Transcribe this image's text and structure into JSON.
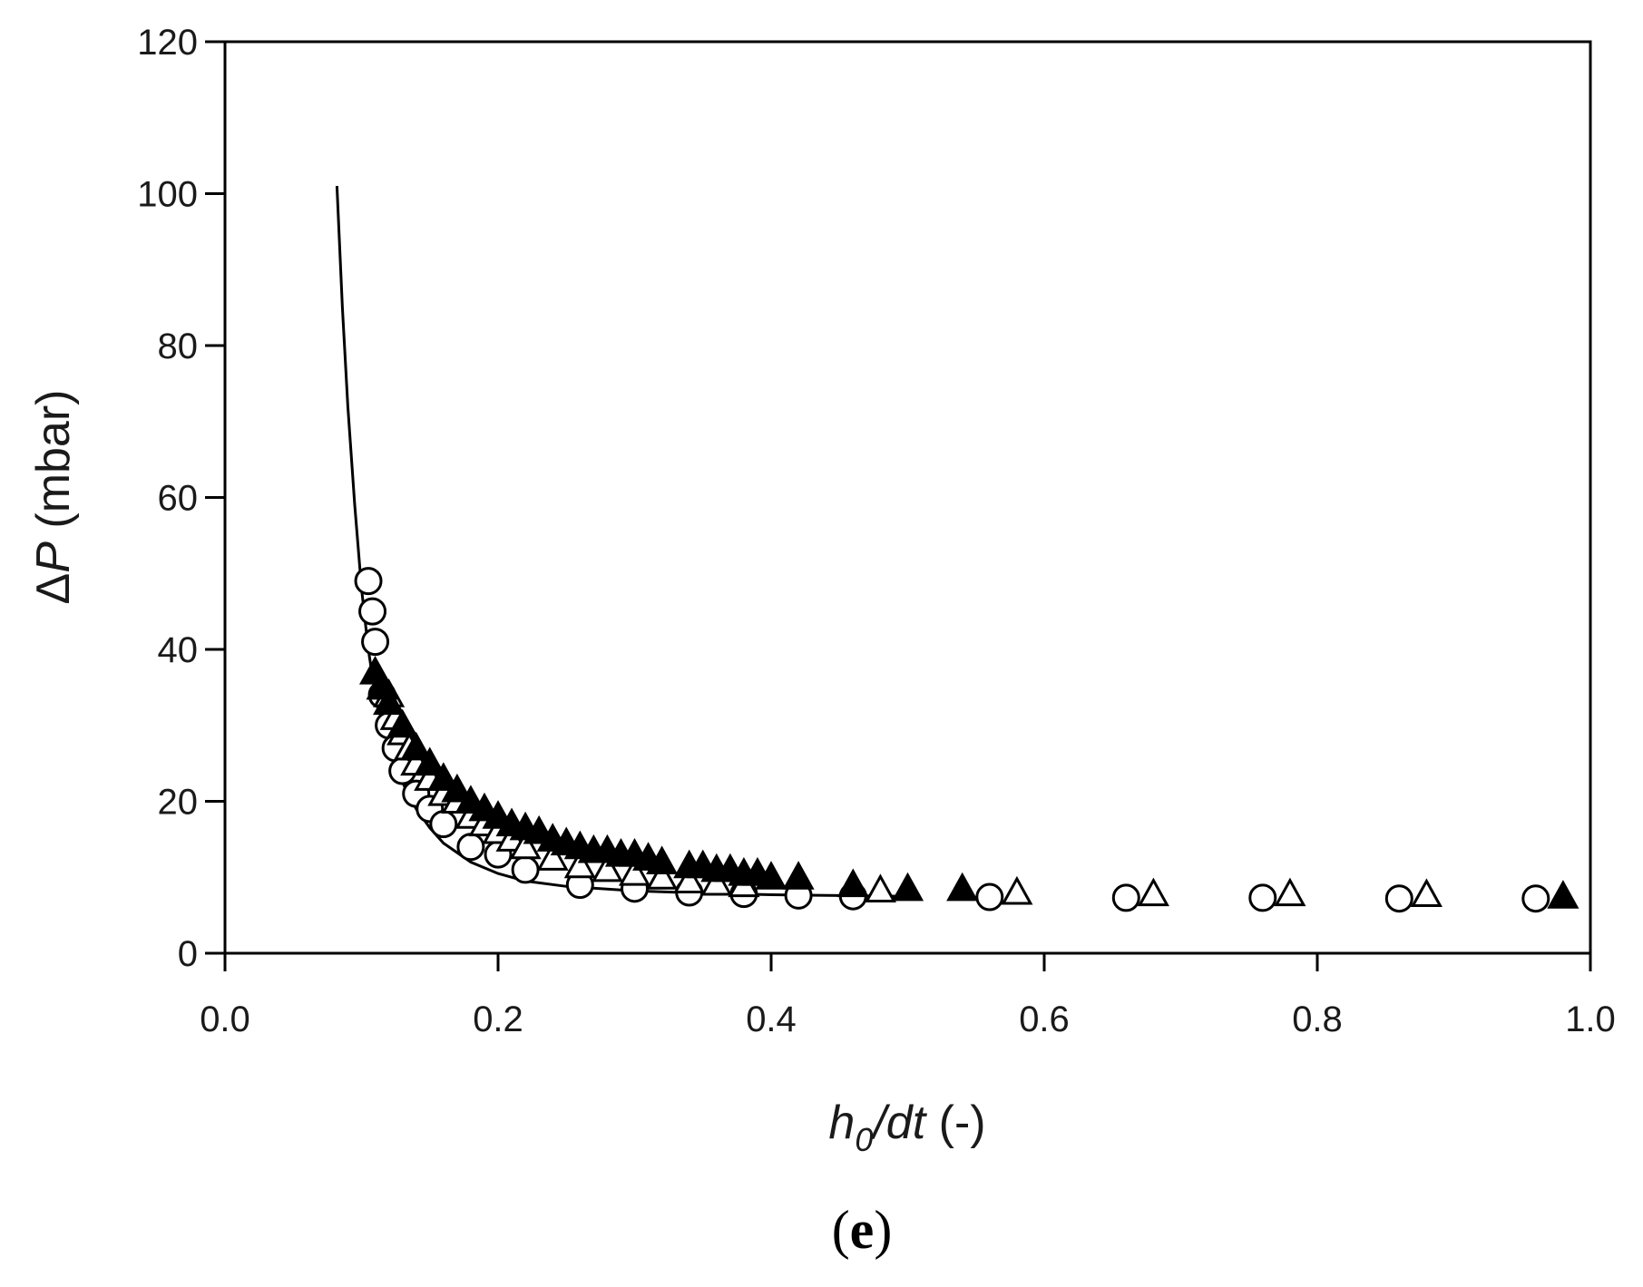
{
  "chart_data": {
    "type": "scatter",
    "title": "",
    "xlabel": {
      "italic_main": "h",
      "subscript": "0",
      "italic_rest": "/dt",
      "plain": " (-)"
    },
    "ylabel": {
      "symbol": "Δ",
      "italic": "P",
      "plain": " (mbar)"
    },
    "xlim": [
      0.0,
      1.0
    ],
    "ylim": [
      0,
      120
    ],
    "x_ticks": [
      "0.0",
      "0.2",
      "0.4",
      "0.6",
      "0.8",
      "1.0"
    ],
    "y_ticks": [
      "0",
      "20",
      "40",
      "60",
      "80",
      "100",
      "120"
    ],
    "grid": false,
    "legend": "none",
    "panel_label": {
      "open": "(",
      "letter": "e",
      "close": ")"
    },
    "series": [
      {
        "marker": "circle-open",
        "x": [
          0.105,
          0.108,
          0.11,
          0.115,
          0.12,
          0.125,
          0.13,
          0.14,
          0.15,
          0.16,
          0.18,
          0.2,
          0.22,
          0.26,
          0.3,
          0.34,
          0.38,
          0.42,
          0.46,
          0.56,
          0.66,
          0.76,
          0.86,
          0.96
        ],
        "y": [
          49,
          45,
          41,
          34,
          30,
          27,
          24,
          21,
          19,
          17,
          14,
          13,
          11,
          9,
          8.5,
          8,
          7.8,
          7.6,
          7.5,
          7.4,
          7.3,
          7.3,
          7.2,
          7.2
        ]
      },
      {
        "marker": "triangle-open",
        "x": [
          0.12,
          0.125,
          0.13,
          0.135,
          0.14,
          0.15,
          0.16,
          0.17,
          0.18,
          0.19,
          0.2,
          0.21,
          0.22,
          0.24,
          0.26,
          0.28,
          0.3,
          0.32,
          0.34,
          0.36,
          0.38,
          0.48,
          0.58,
          0.68,
          0.78,
          0.88
        ],
        "y": [
          34,
          31,
          29,
          27,
          25,
          23,
          21,
          20,
          18,
          17,
          16,
          15,
          14,
          12.5,
          11.5,
          11,
          10.5,
          10,
          9.5,
          9.2,
          9,
          8.3,
          8,
          7.8,
          7.8,
          7.7
        ]
      },
      {
        "marker": "triangle-filled",
        "x": [
          0.11,
          0.115,
          0.12,
          0.13,
          0.14,
          0.15,
          0.16,
          0.17,
          0.18,
          0.19,
          0.2,
          0.21,
          0.22,
          0.23,
          0.24,
          0.25,
          0.26,
          0.27,
          0.28,
          0.29,
          0.3,
          0.31,
          0.32,
          0.34,
          0.35,
          0.36,
          0.37,
          0.38,
          0.39,
          0.4,
          0.42,
          0.46,
          0.5,
          0.54,
          0.98
        ],
        "y": [
          37,
          35,
          33,
          30,
          27,
          25,
          23,
          21.5,
          20,
          19,
          18,
          17,
          16.5,
          16,
          15,
          14.5,
          14,
          13.5,
          13.5,
          13,
          13,
          12.5,
          12,
          11.5,
          11.5,
          11,
          11,
          10.5,
          10.5,
          10,
          10,
          9,
          8.5,
          8.5,
          7.5
        ]
      }
    ],
    "fit_line": {
      "x": [
        0.082,
        0.086,
        0.09,
        0.095,
        0.1,
        0.105,
        0.11,
        0.12,
        0.13,
        0.14,
        0.15,
        0.16,
        0.18,
        0.2,
        0.22,
        0.25,
        0.3,
        0.35,
        0.4,
        0.45,
        0.5
      ],
      "y": [
        101,
        85,
        72,
        59,
        48,
        40,
        34,
        27,
        22.5,
        19,
        16.5,
        14.5,
        12,
        10.5,
        9.5,
        8.8,
        8.2,
        7.9,
        7.7,
        7.6,
        7.5
      ]
    }
  }
}
